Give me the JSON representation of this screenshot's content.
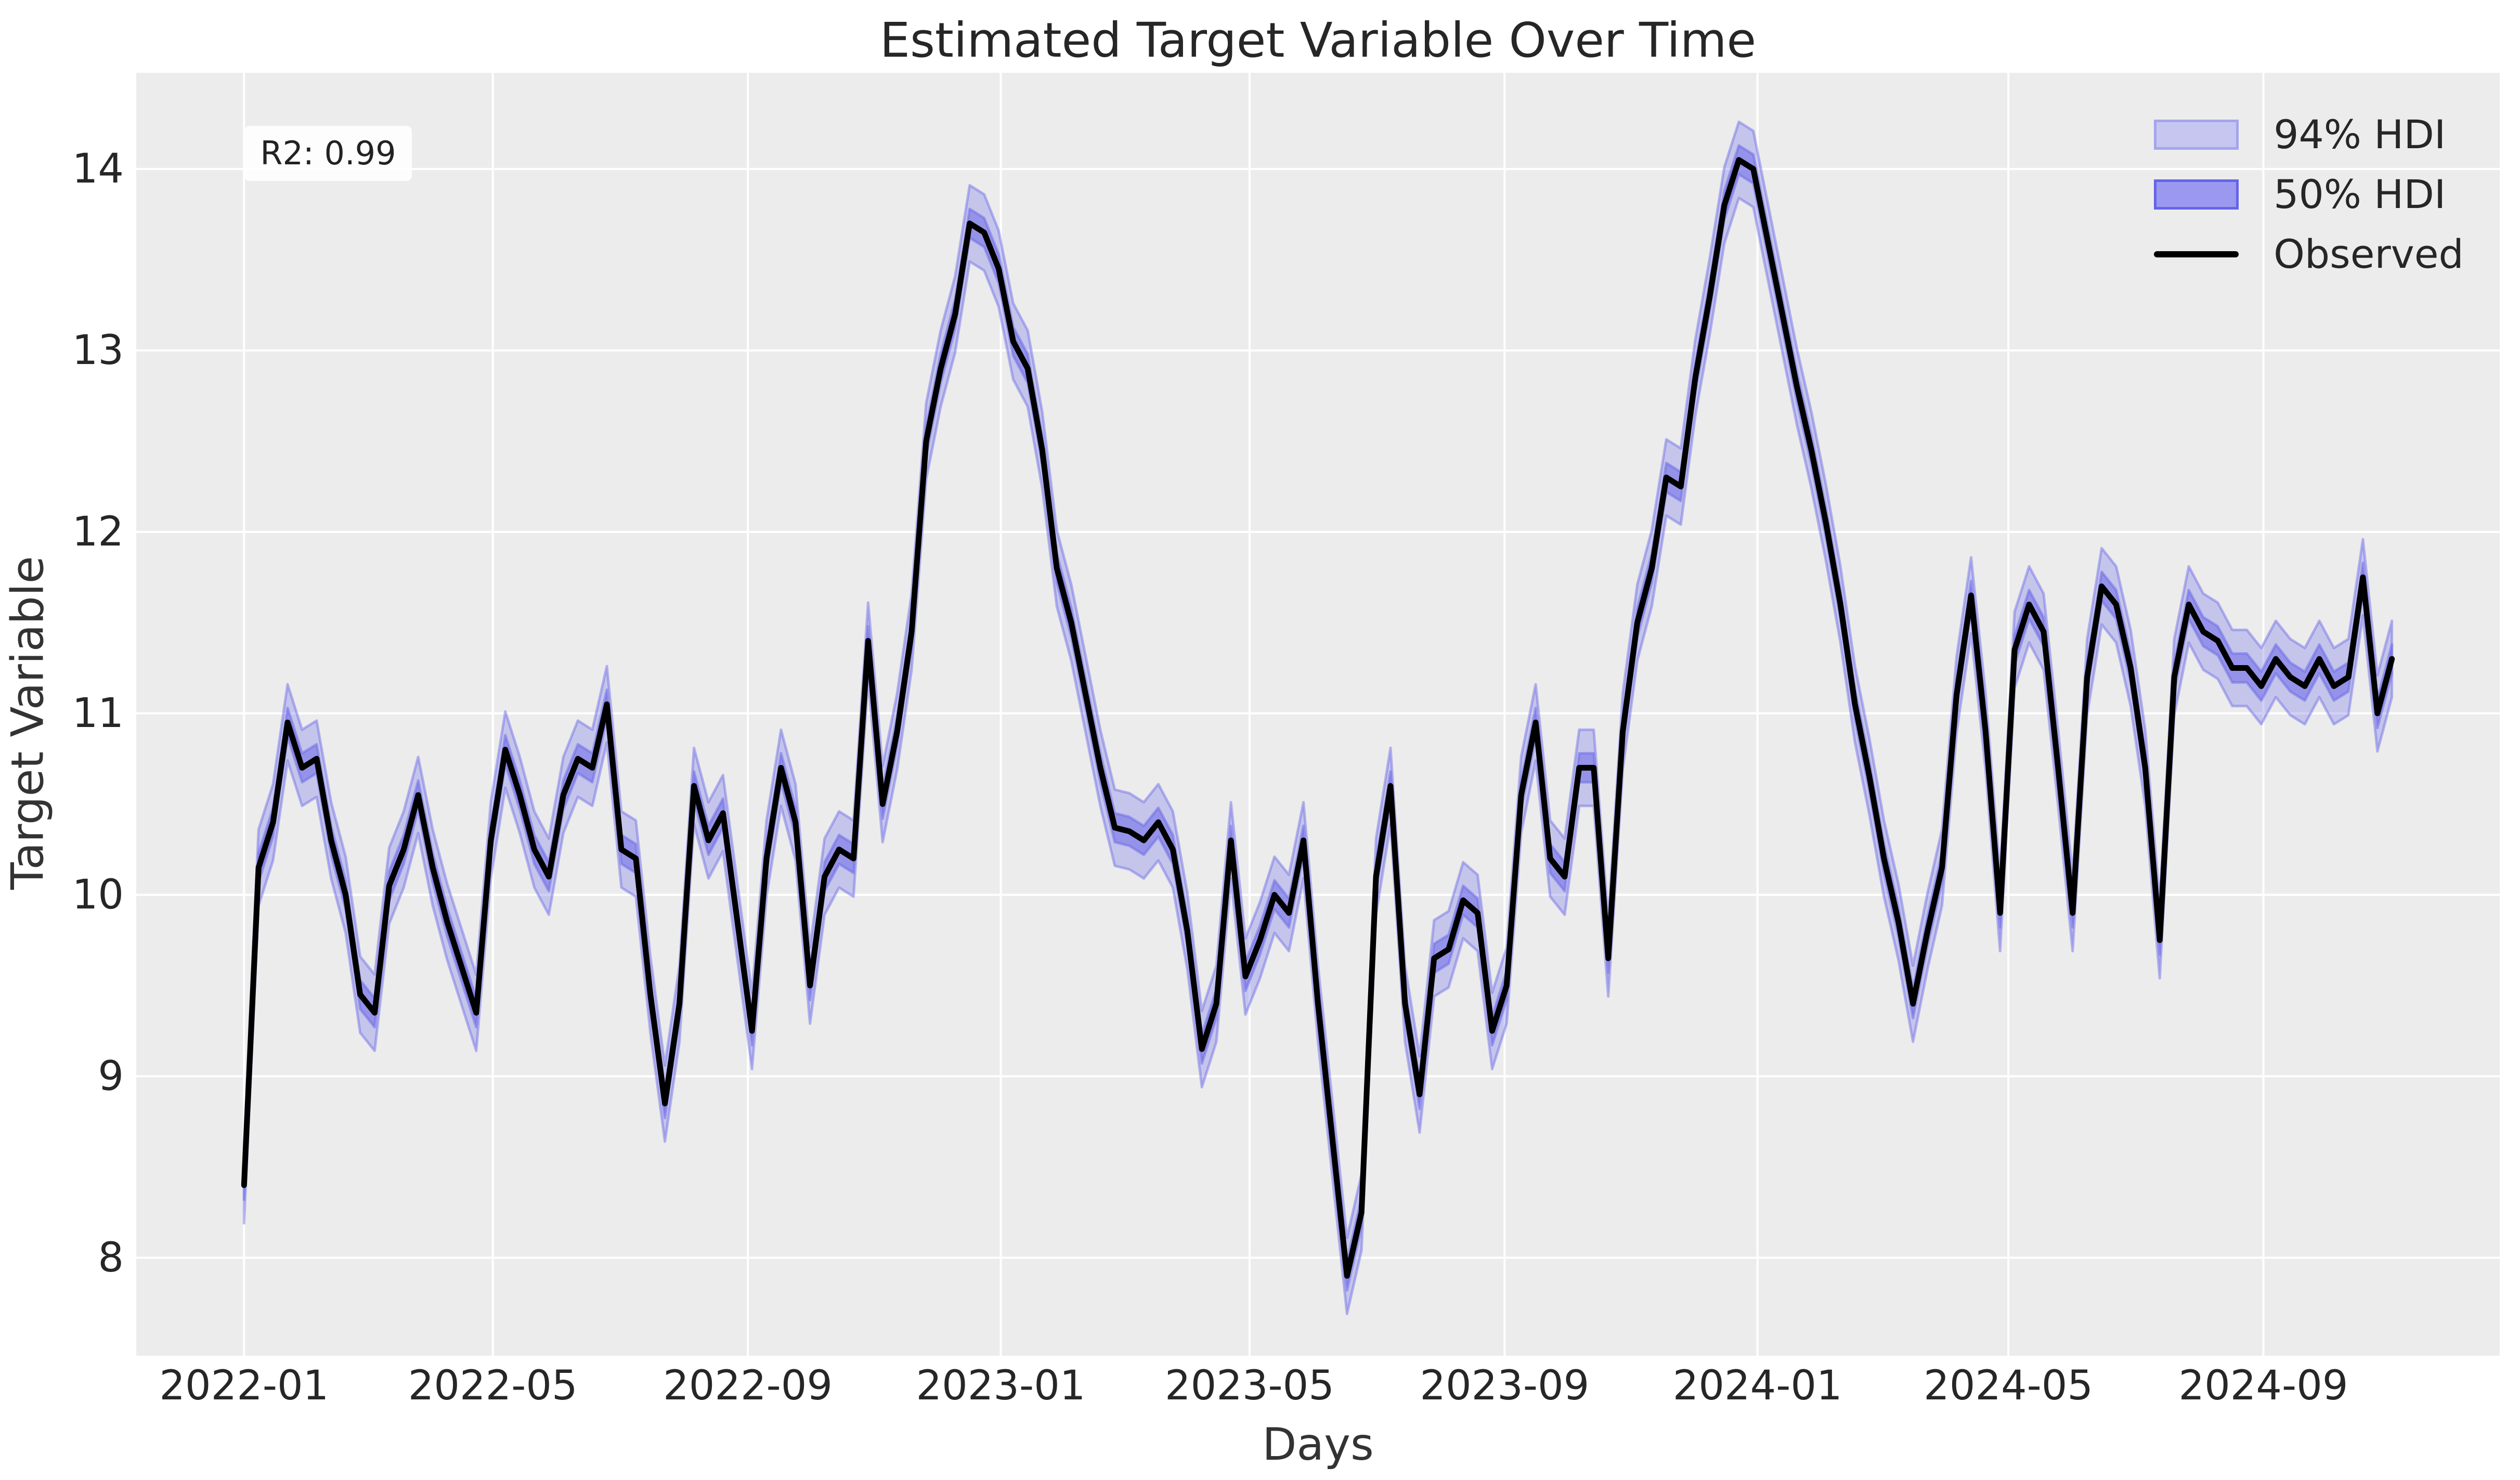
{
  "title": "Estimated Target Variable Over Time",
  "annotation": {
    "label": "R2: 0.99"
  },
  "axes": {
    "xlabel": "Days",
    "ylabel": "Target Variable"
  },
  "legend": {
    "position": "upper right",
    "items": [
      {
        "label": "94% HDI",
        "swatch": "band-light-swatch"
      },
      {
        "label": "50% HDI",
        "swatch": "band-dark-swatch"
      },
      {
        "label": "Observed",
        "swatch": "line-swatch"
      }
    ]
  },
  "colors": {
    "plot_bg": "#ECECEC",
    "grid": "#FFFFFF",
    "observed_line": "#000000",
    "band_base": "#6B69E8",
    "text": "#333333",
    "tick_text": "#262626",
    "annotation_bg": "#FBFBFB",
    "legend_swatch94_fill": "#C7C6F1",
    "legend_swatch94_edge": "#A5A4EE",
    "legend_swatch50_fill": "#9A99EF",
    "legend_swatch50_edge": "#6664E8"
  },
  "chart_data": {
    "type": "line",
    "title": "Estimated Target Variable Over Time",
    "xlabel": "Days",
    "ylabel": "Target Variable",
    "legend_position": "upper right",
    "grid": true,
    "x_ticks": [
      {
        "label": "2022-01",
        "date": "2022-01-01"
      },
      {
        "label": "2022-05",
        "date": "2022-05-01"
      },
      {
        "label": "2022-09",
        "date": "2022-09-01"
      },
      {
        "label": "2023-01",
        "date": "2023-01-01"
      },
      {
        "label": "2023-05",
        "date": "2023-05-01"
      },
      {
        "label": "2023-09",
        "date": "2023-09-01"
      },
      {
        "label": "2024-01",
        "date": "2024-01-01"
      },
      {
        "label": "2024-05",
        "date": "2024-05-01"
      },
      {
        "label": "2024-09",
        "date": "2024-09-01"
      }
    ],
    "y_ticks": [
      8,
      9,
      10,
      11,
      12,
      13,
      14
    ],
    "xlim": [
      "2021-11-10",
      "2024-12-24"
    ],
    "ylim": [
      7.46,
      14.53
    ],
    "series_start_date": "2022-01-01",
    "series_step_days": 7,
    "observed_series_name": "Observed",
    "observed": [
      8.4,
      10.15,
      10.4,
      10.95,
      10.7,
      10.75,
      10.3,
      10.0,
      9.45,
      9.35,
      10.05,
      10.25,
      10.55,
      10.15,
      9.85,
      9.6,
      9.35,
      10.3,
      10.8,
      10.55,
      10.25,
      10.1,
      10.55,
      10.75,
      10.7,
      11.05,
      10.25,
      10.2,
      9.45,
      8.85,
      9.4,
      10.6,
      10.3,
      10.45,
      9.85,
      9.25,
      10.2,
      10.7,
      10.4,
      9.5,
      10.1,
      10.25,
      10.2,
      11.4,
      10.5,
      10.9,
      11.45,
      12.5,
      12.9,
      13.2,
      13.7,
      13.65,
      13.45,
      13.05,
      12.9,
      12.45,
      11.8,
      11.5,
      11.1,
      10.7,
      10.37,
      10.35,
      10.3,
      10.4,
      10.25,
      9.8,
      9.15,
      9.4,
      10.3,
      9.55,
      9.75,
      10.0,
      9.9,
      10.3,
      9.4,
      8.65,
      7.9,
      8.25,
      10.1,
      10.6,
      9.4,
      8.9,
      9.65,
      9.7,
      9.97,
      9.9,
      9.25,
      9.5,
      10.55,
      10.95,
      10.2,
      10.1,
      10.7,
      10.7,
      9.65,
      10.9,
      11.5,
      11.8,
      12.3,
      12.25,
      12.85,
      13.3,
      13.8,
      14.05,
      14.0,
      13.6,
      13.2,
      12.8,
      12.45,
      12.05,
      11.6,
      11.05,
      10.65,
      10.2,
      9.85,
      9.4,
      9.8,
      10.15,
      11.1,
      11.65,
      10.9,
      9.9,
      11.35,
      11.6,
      11.45,
      10.7,
      9.9,
      11.2,
      11.7,
      11.6,
      11.25,
      10.7,
      9.75,
      11.2,
      11.6,
      11.45,
      11.4,
      11.25,
      11.25,
      11.15,
      11.3,
      11.2,
      11.15,
      11.3,
      11.15,
      11.2,
      11.75,
      11.0,
      11.3
    ],
    "bands": [
      {
        "name": "94% HDI",
        "halfwidth": 0.21,
        "fill": "rgba(107,105,232,0.30)",
        "edge": "rgba(107,105,232,0.45)"
      },
      {
        "name": "50% HDI",
        "halfwidth": 0.08,
        "fill": "rgba(107,105,232,0.55)",
        "edge": "rgba(107,105,232,0.50)"
      }
    ]
  }
}
